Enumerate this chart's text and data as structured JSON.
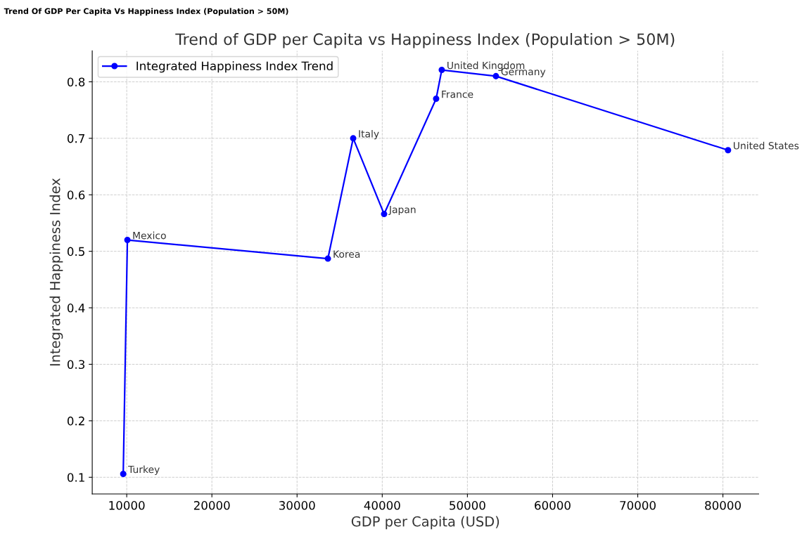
{
  "chart_data": {
    "type": "line",
    "title": "Trend of GDP per Capita vs Happiness Index (Population > 50M)",
    "xlabel": "GDP per Capita (USD)",
    "ylabel": "Integrated Happiness Index",
    "x": [
      9590,
      10080,
      33620,
      36590,
      40220,
      46330,
      46990,
      53350,
      80600
    ],
    "series": [
      {
        "name": "Integrated Happiness Index Trend",
        "color": "#0000ff",
        "values": [
          0.106,
          0.52,
          0.487,
          0.7,
          0.566,
          0.77,
          0.821,
          0.81,
          0.679
        ]
      }
    ],
    "annotations": [
      {
        "text": "Turkey",
        "x": 9590,
        "y": 0.106
      },
      {
        "text": "Mexico",
        "x": 10080,
        "y": 0.52
      },
      {
        "text": "Korea",
        "x": 33620,
        "y": 0.487
      },
      {
        "text": "Italy",
        "x": 36590,
        "y": 0.7
      },
      {
        "text": "Japan",
        "x": 40220,
        "y": 0.566
      },
      {
        "text": "France",
        "x": 46330,
        "y": 0.77
      },
      {
        "text": "United Kingdom",
        "x": 46990,
        "y": 0.821
      },
      {
        "text": "Germany",
        "x": 53350,
        "y": 0.81
      },
      {
        "text": "United States",
        "x": 80600,
        "y": 0.679
      },
      "Trend Of GDP Per Capita Vs Happiness Index (Population > 50M)"
    ],
    "xlim": [
      5950,
      84200
    ],
    "ylim": [
      0.0705,
      0.855
    ],
    "xticks": [
      10000,
      20000,
      30000,
      40000,
      50000,
      60000,
      70000,
      80000
    ],
    "yticks": [
      0.1,
      0.2,
      0.3,
      0.4,
      0.5,
      0.6,
      0.7,
      0.8
    ],
    "grid": true,
    "legend": "top left",
    "marker": "circle",
    "line_style": "solid"
  }
}
